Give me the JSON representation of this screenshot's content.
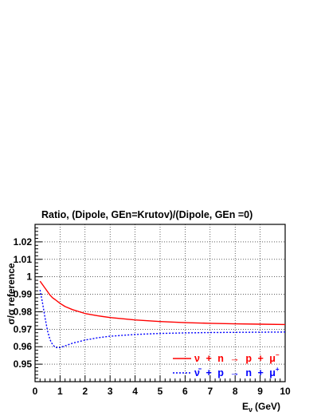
{
  "chart_data": {
    "type": "line",
    "title": "Ratio, (Dipole, GEn=Krutov)/(Dipole, GEn =0)",
    "ylabel": "σ/σ reference",
    "xlabel": "E",
    "xlabel_subscript": "ν",
    "xlabel_unit": "(GeV)",
    "xlim": [
      0,
      10
    ],
    "ylim": [
      0.94,
      1.03
    ],
    "xticks": [
      "0",
      "1",
      "2",
      "3",
      "4",
      "5",
      "6",
      "7",
      "8",
      "9",
      "10"
    ],
    "yticks": [
      "0.95",
      "0.96",
      "0.97",
      "0.98",
      "0.99",
      "1",
      "1.01",
      "1.02"
    ],
    "grid": true,
    "legend_position": "bottom-right",
    "series": [
      {
        "name": "ν + n → p + μ⁻",
        "legend_parts": [
          "ν",
          "+",
          "n",
          "→",
          "p",
          "+",
          "μ",
          "−"
        ],
        "color": "#ff0000",
        "style": "solid",
        "x": [
          0.2,
          0.3,
          0.4,
          0.5,
          0.6,
          0.7,
          0.8,
          1.0,
          1.2,
          1.5,
          2.0,
          2.5,
          3.0,
          3.5,
          4.0,
          5.0,
          6.0,
          7.0,
          8.0,
          9.0,
          10.0
        ],
        "y": [
          0.9975,
          0.9955,
          0.9935,
          0.9915,
          0.9895,
          0.988,
          0.987,
          0.9848,
          0.983,
          0.9812,
          0.979,
          0.9777,
          0.9767,
          0.976,
          0.9753,
          0.9744,
          0.9738,
          0.9734,
          0.9731,
          0.9729,
          0.9727
        ]
      },
      {
        "name": "ν̄ + p → n + μ⁺",
        "legend_parts": [
          "ν̄",
          "+",
          "p",
          "→",
          "n",
          "+",
          "μ",
          "+"
        ],
        "color": "#0000ff",
        "style": "dashed",
        "x": [
          0.2,
          0.3,
          0.4,
          0.5,
          0.6,
          0.7,
          0.8,
          0.9,
          1.0,
          1.2,
          1.5,
          2.0,
          2.5,
          3.0,
          4.0,
          5.0,
          6.0,
          7.0,
          8.0,
          9.0,
          10.0
        ],
        "y": [
          0.9925,
          0.985,
          0.9765,
          0.969,
          0.964,
          0.9612,
          0.9598,
          0.9594,
          0.9595,
          0.9605,
          0.962,
          0.9638,
          0.9651,
          0.966,
          0.967,
          0.9676,
          0.9679,
          0.9681,
          0.9682,
          0.9683,
          0.9684
        ]
      }
    ]
  }
}
